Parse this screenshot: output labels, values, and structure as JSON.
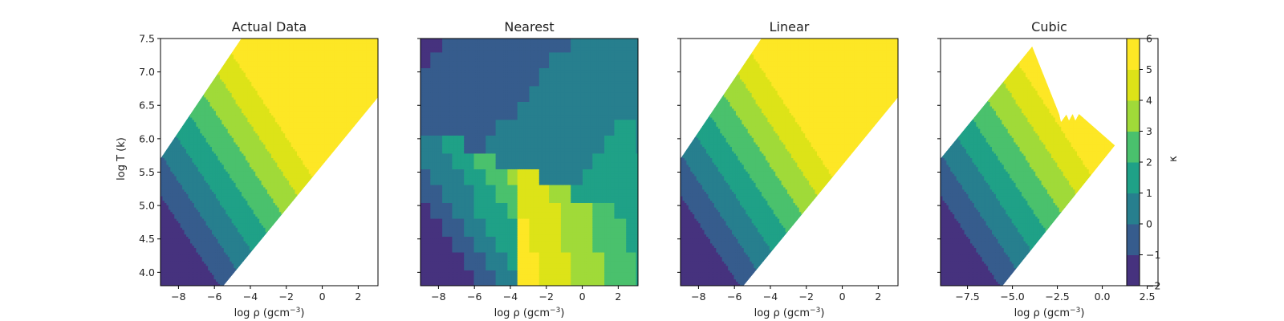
{
  "figure": {
    "ylabel": "log T (k)",
    "xlabel": "log ρ (gcm",
    "xlabel_exp": "−3",
    "xlabel_close": ")"
  },
  "chart_data": [
    {
      "type": "heatmap",
      "title": "Actual Data",
      "xlim": [
        -9,
        3.1
      ],
      "ylim": [
        3.8,
        7.5
      ],
      "xticks": [
        "−8",
        "−6",
        "−4",
        "−2",
        "0",
        "2"
      ],
      "xtick_values": [
        -8,
        -6,
        -4,
        -2,
        0,
        2
      ],
      "yticks": [
        "4.0",
        "4.5",
        "5.0",
        "5.5",
        "6.0",
        "6.5",
        "7.0",
        "7.5"
      ],
      "ytick_values": [
        4.0,
        4.5,
        5.0,
        5.5,
        6.0,
        6.5,
        7.0,
        7.5
      ],
      "domain": "band",
      "hull": null,
      "method": "smooth"
    },
    {
      "type": "heatmap",
      "title": "Nearest",
      "xlim": [
        -9,
        3.1
      ],
      "ylim": [
        3.8,
        7.5
      ],
      "xticks": [
        "−8",
        "−6",
        "−4",
        "−2",
        "0",
        "2"
      ],
      "xtick_values": [
        -8,
        -6,
        -4,
        -2,
        0,
        2
      ],
      "yticks": [],
      "ytick_values": [
        4.0,
        4.5,
        5.0,
        5.5,
        6.0,
        6.5,
        7.0,
        7.5
      ],
      "domain": "full",
      "hull": null,
      "method": "nearest"
    },
    {
      "type": "heatmap",
      "title": "Linear",
      "xlim": [
        -9,
        3.1
      ],
      "ylim": [
        3.8,
        7.5
      ],
      "xticks": [
        "−8",
        "−6",
        "−4",
        "−2",
        "0",
        "2"
      ],
      "xtick_values": [
        -8,
        -6,
        -4,
        -2,
        0,
        2
      ],
      "yticks": [],
      "ytick_values": [
        4.0,
        4.5,
        5.0,
        5.5,
        6.0,
        6.5,
        7.0,
        7.5
      ],
      "domain": "band",
      "hull": null,
      "method": "smooth"
    },
    {
      "type": "heatmap",
      "title": "Cubic",
      "xlim": [
        -9,
        3.1
      ],
      "ylim": [
        3.8,
        7.5
      ],
      "xticks": [
        "−7.5",
        "−5.0",
        "−2.5",
        "0.0",
        "2.5"
      ],
      "xtick_values": [
        -7.5,
        -5.0,
        -2.5,
        0.0,
        2.5
      ],
      "yticks": [],
      "ytick_values": [
        4.0,
        4.5,
        5.0,
        5.5,
        6.0,
        6.5,
        7.0,
        7.5
      ],
      "domain": "hull",
      "hull": [
        [
          -9,
          5.7
        ],
        [
          -3.9,
          7.38
        ],
        [
          -2.4,
          6.37
        ],
        [
          -2.3,
          6.25
        ],
        [
          -2.0,
          6.36
        ],
        [
          -1.85,
          6.27
        ],
        [
          -1.65,
          6.37
        ],
        [
          -1.5,
          6.27
        ],
        [
          -1.3,
          6.37
        ],
        [
          0.7,
          5.9
        ],
        [
          -5.55,
          3.8
        ],
        [
          -9,
          3.8
        ]
      ],
      "method": "smooth"
    }
  ],
  "colorbar": {
    "label": "κ",
    "levels": [
      -2,
      -1,
      0,
      1,
      2,
      3,
      4,
      5,
      6
    ],
    "ticks": [
      "−2",
      "−1",
      "0",
      "1",
      "2",
      "3",
      "4",
      "5",
      "6"
    ],
    "colors": [
      "#46327e",
      "#365c8d",
      "#277f8e",
      "#1fa187",
      "#4ac16d",
      "#a0da39",
      "#dde318",
      "#fde725"
    ]
  }
}
